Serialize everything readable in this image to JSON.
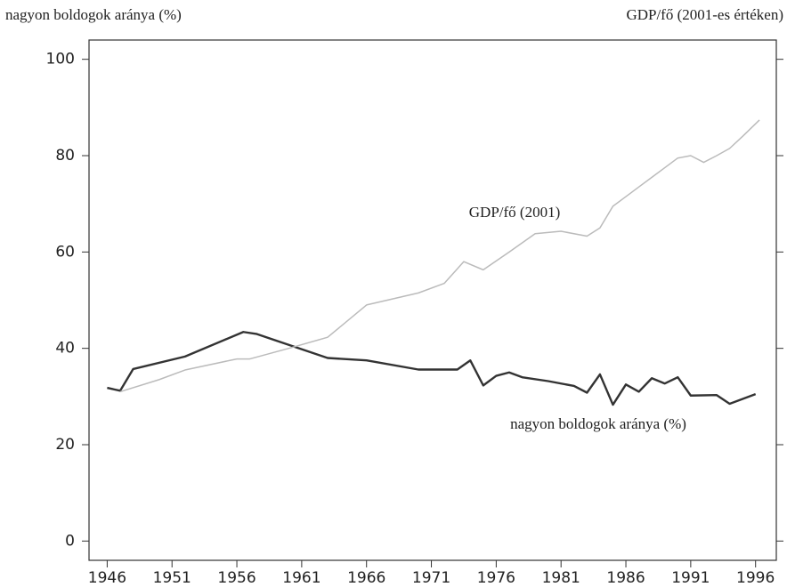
{
  "chart_data": {
    "type": "line",
    "ylabel": "nagyon boldogok aránya (%)",
    "y2label": "GDP/fő (2001-es értéken)",
    "annotations": [
      "GDP/fő (2001)",
      "nagyon boldogok aránya (%)"
    ],
    "xlim": [
      1944.6,
      1997.6
    ],
    "xticks": [
      1946,
      1951,
      1956,
      1961,
      1966,
      1971,
      1976,
      1981,
      1986,
      1991,
      1996
    ],
    "ylim": [
      -4,
      104
    ],
    "yticks": [
      0,
      20,
      40,
      60,
      80,
      100
    ],
    "series": [
      {
        "name": "nagyon boldogok aránya (%)",
        "color": "#333333",
        "x": [
          1946,
          1947,
          1948,
          1952,
          1956.5,
          1957.5,
          1963,
          1966,
          1970,
          1973,
          1974,
          1975,
          1976,
          1977,
          1978,
          1980,
          1982,
          1983,
          1984,
          1985,
          1986,
          1987,
          1988,
          1989,
          1990,
          1991,
          1993,
          1994,
          1996
        ],
        "values": [
          31.8,
          31.2,
          35.7,
          38.3,
          43.4,
          43,
          38,
          37.5,
          35.6,
          35.6,
          37.5,
          32.3,
          34.3,
          35,
          34,
          33.2,
          32.2,
          30.8,
          34.6,
          28.3,
          32.5,
          31,
          33.8,
          32.7,
          34,
          30.2,
          30.3,
          28.5,
          30.5
        ]
      },
      {
        "name": "GDP/fő (2001)",
        "color": "#bbbbbb",
        "x": [
          1947,
          1950,
          1952,
          1956,
          1957,
          1960,
          1963,
          1966,
          1970,
          1972,
          1973.5,
          1975,
          1977,
          1979,
          1981,
          1983,
          1984,
          1985,
          1986,
          1987,
          1988,
          1989,
          1990,
          1991,
          1992,
          1993,
          1994,
          1995,
          1996.3
        ],
        "values": [
          31,
          33.5,
          35.5,
          37.8,
          37.8,
          40,
          42.3,
          49,
          51.5,
          53.5,
          58,
          56.3,
          60,
          63.8,
          64.3,
          63.3,
          65,
          69.5,
          71.5,
          73.5,
          75.5,
          77.5,
          79.5,
          80,
          78.6,
          80,
          81.5,
          84,
          87.4
        ]
      }
    ]
  }
}
